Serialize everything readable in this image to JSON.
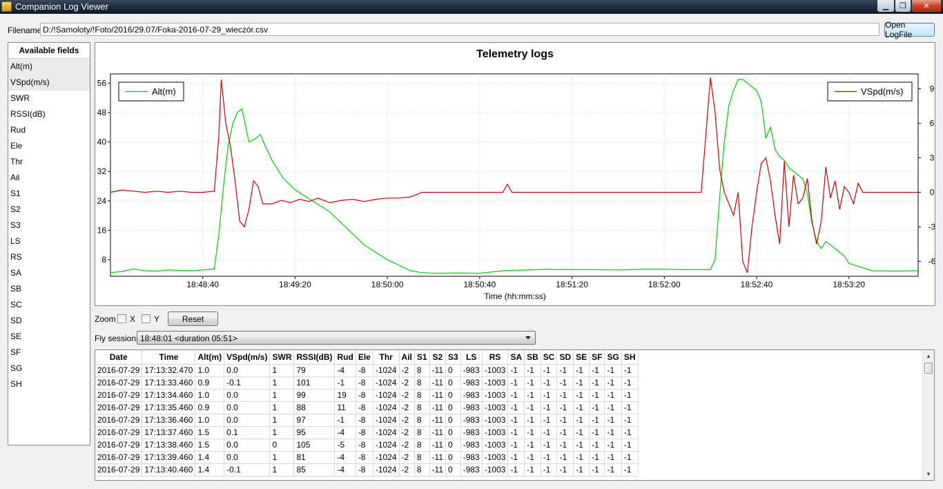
{
  "window": {
    "title": "Companion Log Viewer",
    "minimize_glyph": "▁",
    "maximize_glyph": "❐",
    "close_glyph": "✕"
  },
  "file": {
    "label": "Filename",
    "value": "D:/!Samoloty/!Foto/2016/29.07/Foka-2016-07-29_wieczór.csv",
    "open_button": "Open LogFile"
  },
  "fields": {
    "header": "Available fields",
    "items": [
      "Alt(m)",
      "VSpd(m/s)",
      "SWR",
      "RSSI(dB)",
      "Rud",
      "Ele",
      "Thr",
      "Ail",
      "S1",
      "S2",
      "S3",
      "LS",
      "RS",
      "SA",
      "SB",
      "SC",
      "SD",
      "SE",
      "SF",
      "SG",
      "SH"
    ],
    "selected": [
      "Alt(m)",
      "VSpd(m/s)"
    ]
  },
  "chart_data": {
    "type": "line",
    "title": "Telemetry logs",
    "xlabel": "Time (hh:mm:ss)",
    "x_ticks": [
      "18:48:40",
      "18:49:20",
      "18:50:00",
      "18:50:40",
      "18:51:20",
      "18:52:00",
      "18:52:40",
      "18:53:20"
    ],
    "x_tick_seconds": [
      40,
      80,
      120,
      160,
      200,
      240,
      280,
      320
    ],
    "xlim_seconds": [
      0,
      350
    ],
    "x_origin": "18:48:00",
    "y_left": {
      "ticks": [
        8,
        16,
        24,
        32,
        40,
        48,
        56
      ],
      "lim": [
        3.5,
        58.5
      ]
    },
    "y_right": {
      "ticks": [
        -6,
        -3,
        0,
        3,
        6,
        9
      ],
      "lim": [
        -7.3,
        10.3
      ]
    },
    "grid": true,
    "series": [
      {
        "name": "Alt(m)",
        "axis": "left",
        "color": "#00cc00",
        "legend": "top-left",
        "x": [
          0,
          5,
          10,
          15,
          20,
          25,
          30,
          35,
          40,
          45,
          47,
          49,
          51,
          53,
          55,
          57,
          60,
          63,
          65,
          67,
          70,
          75,
          80,
          85,
          90,
          95,
          100,
          105,
          110,
          115,
          120,
          125,
          130,
          135,
          140,
          150,
          160,
          170,
          180,
          190,
          200,
          210,
          220,
          230,
          240,
          250,
          260,
          262,
          264,
          266,
          268,
          270,
          272,
          274,
          276,
          278,
          280,
          282,
          284,
          286,
          288,
          290,
          292,
          294,
          296,
          298,
          300,
          302,
          304,
          306,
          308,
          310,
          312,
          314,
          316,
          318,
          320,
          325,
          330,
          340,
          350
        ],
        "y": [
          4.5,
          4.8,
          5.5,
          5.0,
          4.9,
          5.2,
          5.1,
          5.0,
          5.2,
          5.5,
          15,
          28,
          39,
          45,
          48,
          49,
          40,
          41,
          42,
          39,
          35,
          30,
          27,
          25,
          23,
          21,
          18,
          15,
          12,
          10,
          8,
          6.5,
          5,
          4.5,
          4.3,
          4.4,
          4.3,
          5,
          5.2,
          5.4,
          5.3,
          5.3,
          5.2,
          5.4,
          5.4,
          5.3,
          5.3,
          8,
          25,
          40,
          50,
          54,
          57,
          57,
          56,
          55,
          54,
          51,
          41,
          44,
          38,
          36,
          35,
          33,
          32,
          31,
          30,
          26,
          18,
          13,
          11,
          13,
          12,
          11,
          10,
          9,
          7,
          6,
          5,
          4.9,
          5
        ]
      },
      {
        "name": "VSpd(m/s)",
        "axis": "right",
        "color": "#cc0000",
        "legend": "top-right",
        "x": [
          0,
          5,
          10,
          15,
          20,
          25,
          30,
          35,
          40,
          45,
          47,
          48,
          50,
          52,
          54,
          56,
          58,
          60,
          62,
          64,
          66,
          68,
          70,
          74,
          78,
          82,
          86,
          90,
          95,
          100,
          105,
          110,
          115,
          120,
          125,
          130,
          135,
          140,
          150,
          160,
          170,
          172,
          174,
          180,
          190,
          200,
          210,
          220,
          230,
          240,
          250,
          256,
          258,
          260,
          262,
          264,
          266,
          268,
          270,
          272,
          274,
          276,
          278,
          280,
          282,
          284,
          286,
          288,
          290,
          292,
          294,
          296,
          298,
          300,
          302,
          304,
          306,
          308,
          310,
          312,
          314,
          316,
          318,
          320,
          322,
          324,
          326,
          330,
          340,
          350
        ],
        "y": [
          0,
          0.2,
          0.1,
          0,
          0.1,
          0,
          0.1,
          0,
          0,
          0.1,
          5,
          9.8,
          6,
          4,
          1,
          -2.5,
          -3,
          -1.5,
          1,
          0.5,
          -1,
          -1,
          -1,
          -0.7,
          -0.9,
          -0.6,
          -0.8,
          -0.5,
          -0.9,
          -0.7,
          -0.6,
          -0.8,
          -0.6,
          -0.5,
          -0.5,
          -0.4,
          0,
          0,
          0,
          0,
          0,
          0.7,
          0,
          0,
          0,
          0,
          0,
          0,
          0,
          0,
          0,
          0,
          5,
          10,
          7,
          2,
          0,
          -1,
          -2,
          0,
          -6,
          -7,
          -3,
          0,
          2.5,
          3,
          1,
          -2,
          -4.5,
          2.7,
          -3,
          1.5,
          -1,
          -0.5,
          1.2,
          -2.5,
          -4.5,
          -2.5,
          2.2,
          -0.5,
          1,
          -1.5,
          0.5,
          0,
          -1,
          0.8,
          0,
          0,
          0,
          0
        ]
      }
    ]
  },
  "zoom": {
    "label": "Zoom",
    "x_label": "X",
    "y_label": "Y",
    "reset_label": "Reset"
  },
  "sessions": {
    "label": "Fly sessions",
    "selected": "18:48:01 <duration 05:51>"
  },
  "table": {
    "columns": [
      "Date",
      "Time",
      "Alt(m)",
      "VSpd(m/s)",
      "SWR",
      "RSSI(dB)",
      "Rud",
      "Ele",
      "Thr",
      "Ail",
      "S1",
      "S2",
      "S3",
      "LS",
      "RS",
      "SA",
      "SB",
      "SC",
      "SD",
      "SE",
      "SF",
      "SG",
      "SH"
    ],
    "rows": [
      [
        "2016-07-29",
        "17:13:32.470",
        "1.0",
        "0.0",
        "1",
        "79",
        "-4",
        "-8",
        "-1024",
        "-2",
        "8",
        "-11",
        "0",
        "-983",
        "-1003",
        "-1",
        "-1",
        "-1",
        "-1",
        "-1",
        "-1",
        "-1",
        "-1"
      ],
      [
        "2016-07-29",
        "17:13:33.460",
        "0.9",
        "-0.1",
        "1",
        "101",
        "-1",
        "-8",
        "-1024",
        "-2",
        "8",
        "-11",
        "0",
        "-983",
        "-1003",
        "-1",
        "-1",
        "-1",
        "-1",
        "-1",
        "-1",
        "-1",
        "-1"
      ],
      [
        "2016-07-29",
        "17:13:34.460",
        "1.0",
        "0.0",
        "1",
        "99",
        "19",
        "-8",
        "-1024",
        "-2",
        "8",
        "-11",
        "0",
        "-983",
        "-1003",
        "-1",
        "-1",
        "-1",
        "-1",
        "-1",
        "-1",
        "-1",
        "-1"
      ],
      [
        "2016-07-29",
        "17:13:35.460",
        "0.9",
        "0.0",
        "1",
        "88",
        "11",
        "-8",
        "-1024",
        "-2",
        "8",
        "-11",
        "0",
        "-983",
        "-1003",
        "-1",
        "-1",
        "-1",
        "-1",
        "-1",
        "-1",
        "-1",
        "-1"
      ],
      [
        "2016-07-29",
        "17:13:36.460",
        "1.0",
        "0.0",
        "1",
        "97",
        "-1",
        "-8",
        "-1024",
        "-2",
        "8",
        "-11",
        "0",
        "-983",
        "-1003",
        "-1",
        "-1",
        "-1",
        "-1",
        "-1",
        "-1",
        "-1",
        "-1"
      ],
      [
        "2016-07-29",
        "17:13:37.460",
        "1.5",
        "0.1",
        "1",
        "95",
        "-4",
        "-8",
        "-1024",
        "-2",
        "8",
        "-11",
        "0",
        "-983",
        "-1003",
        "-1",
        "-1",
        "-1",
        "-1",
        "-1",
        "-1",
        "-1",
        "-1"
      ],
      [
        "2016-07-29",
        "17:13:38.460",
        "1.5",
        "0.0",
        "0",
        "105",
        "-5",
        "-8",
        "-1024",
        "-2",
        "8",
        "-11",
        "0",
        "-983",
        "-1003",
        "-1",
        "-1",
        "-1",
        "-1",
        "-1",
        "-1",
        "-1",
        "-1"
      ],
      [
        "2016-07-29",
        "17:13:39.460",
        "1.4",
        "0.0",
        "1",
        "81",
        "-4",
        "-8",
        "-1024",
        "-2",
        "8",
        "-11",
        "0",
        "-983",
        "-1003",
        "-1",
        "-1",
        "-1",
        "-1",
        "-1",
        "-1",
        "-1",
        "-1"
      ],
      [
        "2016-07-29",
        "17:13:40.460",
        "1.4",
        "-0.1",
        "1",
        "85",
        "-4",
        "-8",
        "-1024",
        "-2",
        "8",
        "-11",
        "0",
        "-983",
        "-1003",
        "-1",
        "-1",
        "-1",
        "-1",
        "-1",
        "-1",
        "-1",
        "-1"
      ]
    ]
  }
}
